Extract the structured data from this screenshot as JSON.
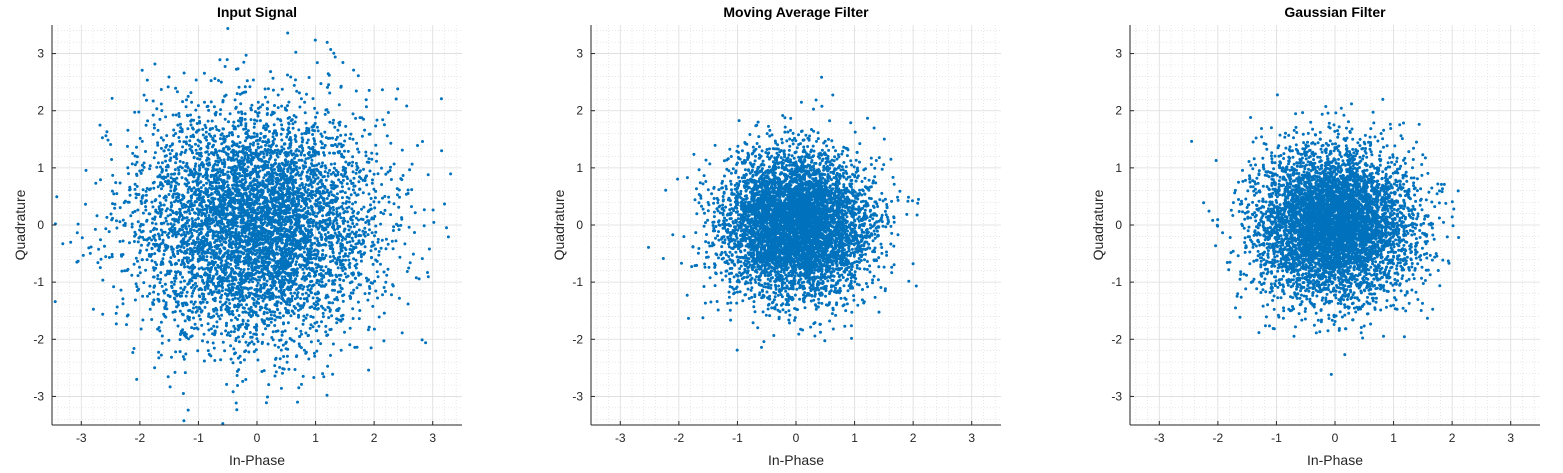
{
  "chart_data": [
    {
      "type": "scatter",
      "title": "Input Signal",
      "xlabel": "In-Phase",
      "ylabel": "Quadrature",
      "xlim": [
        -3.5,
        3.5
      ],
      "ylim": [
        -3.5,
        3.5
      ],
      "xticks": [
        -3,
        -2,
        -1,
        0,
        1,
        2,
        3
      ],
      "yticks": [
        -3,
        -2,
        -1,
        0,
        1,
        2,
        3
      ],
      "grid": true,
      "minor_grid": true,
      "point_color": "#0072BD",
      "distribution": {
        "sample_count": 6000,
        "mean": [
          0.0,
          0.0
        ],
        "std": [
          1.0,
          1.0
        ],
        "seed": 101
      }
    },
    {
      "type": "scatter",
      "title": "Moving Average Filter",
      "xlabel": "In-Phase",
      "ylabel": "Quadrature",
      "xlim": [
        -3.5,
        3.5
      ],
      "ylim": [
        -3.5,
        3.5
      ],
      "xticks": [
        -3,
        -2,
        -1,
        0,
        1,
        2,
        3
      ],
      "yticks": [
        -3,
        -2,
        -1,
        0,
        1,
        2,
        3
      ],
      "grid": true,
      "minor_grid": true,
      "point_color": "#0072BD",
      "distribution": {
        "sample_count": 6000,
        "mean": [
          0.0,
          0.0
        ],
        "std": [
          0.62,
          0.62
        ],
        "seed": 202
      }
    },
    {
      "type": "scatter",
      "title": "Gaussian Filter",
      "xlabel": "In-Phase",
      "ylabel": "Quadrature",
      "xlim": [
        -3.5,
        3.5
      ],
      "ylim": [
        -3.5,
        3.5
      ],
      "xticks": [
        -3,
        -2,
        -1,
        0,
        1,
        2,
        3
      ],
      "yticks": [
        -3,
        -2,
        -1,
        0,
        1,
        2,
        3
      ],
      "grid": true,
      "minor_grid": true,
      "point_color": "#0072BD",
      "distribution": {
        "sample_count": 6000,
        "mean": [
          0.0,
          0.0
        ],
        "std": [
          0.65,
          0.65
        ],
        "seed": 303
      }
    }
  ]
}
